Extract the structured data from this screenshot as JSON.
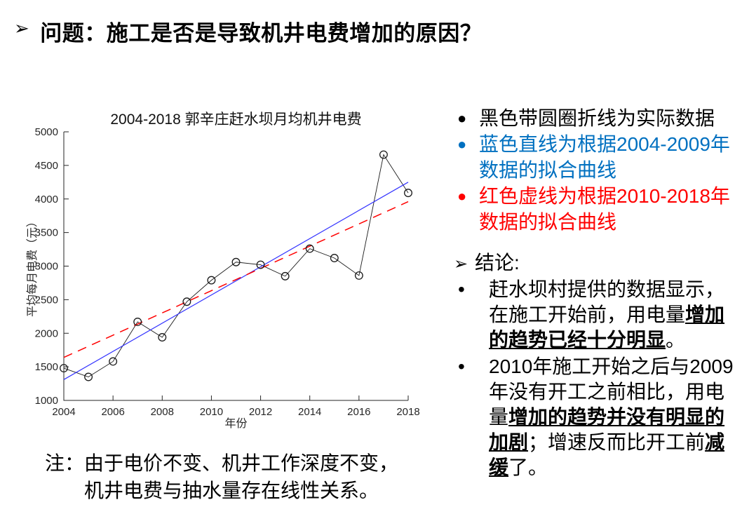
{
  "header": {
    "arrow": "➢",
    "title": "问题：施工是否是导致机井电费增加的原因？"
  },
  "chart_data": {
    "type": "line",
    "title": "2004-2018 郭辛庄赶水坝月均机井电费",
    "xlabel": "年份",
    "ylabel": "平均每月电费（元）",
    "xlim": [
      2004,
      2018
    ],
    "ylim": [
      1000,
      5000
    ],
    "xticks": [
      2004,
      2006,
      2008,
      2010,
      2012,
      2014,
      2016,
      2018
    ],
    "yticks": [
      1000,
      1500,
      2000,
      2500,
      3000,
      3500,
      4000,
      4500,
      5000
    ],
    "grid": false,
    "legend_position": "none",
    "x": [
      2004,
      2005,
      2006,
      2007,
      2008,
      2009,
      2010,
      2011,
      2012,
      2013,
      2014,
      2015,
      2016,
      2017,
      2018
    ],
    "series": [
      {
        "name": "实际数据（黑色带圆圈折线）",
        "type": "line-marker",
        "marker": "open-circle",
        "color": "#1a1a1a",
        "values": [
          1480,
          1350,
          1580,
          2170,
          1940,
          2470,
          2790,
          3060,
          3020,
          2850,
          3260,
          3120,
          2860,
          4660,
          4090
        ]
      },
      {
        "name": "2004-2009年数据的拟合曲线（蓝色直线）",
        "type": "fit-line",
        "style": "solid",
        "color": "#3232ff",
        "x": [
          2004,
          2018
        ],
        "values": [
          1310,
          4250
        ]
      },
      {
        "name": "2010-2018年数据的拟合曲线（红色虚线）",
        "type": "fit-line",
        "style": "dashed",
        "color": "#ff0000",
        "x": [
          2004,
          2018
        ],
        "values": [
          1640,
          3960
        ]
      }
    ]
  },
  "legend_panel": {
    "items": [
      {
        "bullet": "●",
        "text": "黑色带圆圈折线为实际数据",
        "color": "#000000"
      },
      {
        "bullet": "●",
        "text": "蓝色直线为根据2004-2009年数据的拟合曲线",
        "color": "#0070C0"
      },
      {
        "bullet": "●",
        "text": "红色虚线为根据2010-2018年数据的拟合曲线",
        "color": "#FF0000"
      }
    ]
  },
  "conclusion": {
    "arrow": "➢",
    "label": "结论:",
    "bullet": "•",
    "items": [
      {
        "segments": [
          {
            "t": "赶水坝村提供的数据显示，在施工开始前，用电量"
          },
          {
            "t": "增加的趋势已经十分明显",
            "emph": true
          },
          {
            "t": "。"
          }
        ]
      },
      {
        "segments": [
          {
            "t": "2010年施工开始之后与2009年没有开工之前相比，用电量"
          },
          {
            "t": "增加的趋势并没有明显的加剧",
            "emph": true
          },
          {
            "t": "；增速反而比开工前"
          },
          {
            "t": "减缓",
            "emph": true
          },
          {
            "t": "了。"
          }
        ]
      }
    ]
  },
  "note": {
    "prefix": "注：",
    "lines": [
      "由于电价不变、机井工作深度不变，",
      "机井电费与抽水量存在线性关系。"
    ]
  }
}
